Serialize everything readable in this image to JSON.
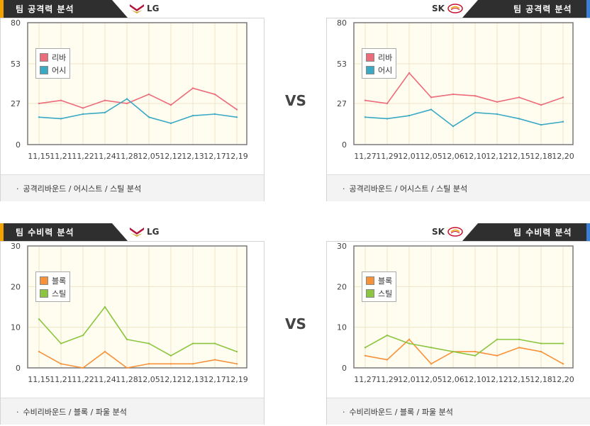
{
  "vs_label": "VS",
  "colors": {
    "tab_dark": "#2f2f2f",
    "tab_accent_orange": "#f2a300",
    "tab_accent_blue": "#3a7fd5",
    "plot_bg": "#fffcf0",
    "grid": "#eee5c8",
    "axis": "#7a7a7a"
  },
  "attack": {
    "title": "팀 공격력 분석",
    "left_team": "LG",
    "right_team": "SK",
    "left_footer": "공격리바운드 / 어시스트 / 스틸 분석",
    "right_footer": "공격리바운드 / 어시스트 / 스틸 분석"
  },
  "defense": {
    "title": "팀 수비력 분석",
    "left_team": "LG",
    "right_team": "SK",
    "left_footer": "수비리바운드 / 블록 / 파울 분석",
    "right_footer": "수비리바운드 / 블록 / 파울 분석"
  },
  "chart_data": [
    {
      "type": "line",
      "team": "LG",
      "categories": [
        "11,15",
        "11,21",
        "11,22",
        "11,24",
        "11,28",
        "12,05",
        "12,12",
        "12,13",
        "12,17",
        "12,19"
      ],
      "yticks": [
        "0",
        "27",
        "53",
        "80"
      ],
      "ylim": [
        0,
        80
      ],
      "legend": "top-left",
      "grid": true,
      "series": [
        {
          "name": "리바",
          "color": "#ec6c7b",
          "values": [
            27,
            29,
            24,
            29,
            27,
            33,
            26,
            37,
            33,
            23
          ]
        },
        {
          "name": "어시",
          "color": "#3aa9c4",
          "values": [
            18,
            17,
            20,
            21,
            30,
            18,
            14,
            19,
            20,
            18
          ]
        }
      ]
    },
    {
      "type": "line",
      "team": "SK",
      "categories": [
        "11,27",
        "11,29",
        "12,01",
        "12,05",
        "12,06",
        "12,10",
        "12,12",
        "12,15",
        "12,18",
        "12,20"
      ],
      "yticks": [
        "0",
        "27",
        "53",
        "80"
      ],
      "ylim": [
        0,
        80
      ],
      "legend": "top-left",
      "grid": true,
      "series": [
        {
          "name": "리바",
          "color": "#ec6c7b",
          "values": [
            29,
            27,
            47,
            31,
            33,
            32,
            28,
            31,
            26,
            31
          ]
        },
        {
          "name": "어시",
          "color": "#3aa9c4",
          "values": [
            18,
            17,
            19,
            23,
            12,
            21,
            20,
            17,
            13,
            15
          ]
        }
      ]
    },
    {
      "type": "line",
      "team": "LG",
      "categories": [
        "11,15",
        "11,21",
        "11,22",
        "11,24",
        "11,28",
        "12,05",
        "12,12",
        "12,13",
        "12,17",
        "12,19"
      ],
      "yticks": [
        "0",
        "10",
        "20",
        "30"
      ],
      "ylim": [
        0,
        30
      ],
      "legend": "top-left",
      "grid": true,
      "series": [
        {
          "name": "블록",
          "color": "#f7923a",
          "values": [
            4,
            1,
            0,
            4,
            0,
            1,
            1,
            1,
            2,
            1
          ]
        },
        {
          "name": "스틸",
          "color": "#8cc63f",
          "values": [
            12,
            6,
            8,
            15,
            7,
            6,
            3,
            6,
            6,
            4
          ]
        }
      ]
    },
    {
      "type": "line",
      "team": "SK",
      "categories": [
        "11,27",
        "11,29",
        "12,01",
        "12,05",
        "12,06",
        "12,10",
        "12,12",
        "12,15",
        "12,18",
        "12,20"
      ],
      "yticks": [
        "0",
        "10",
        "20",
        "30"
      ],
      "ylim": [
        0,
        30
      ],
      "legend": "top-left",
      "grid": true,
      "series": [
        {
          "name": "블록",
          "color": "#f7923a",
          "values": [
            3,
            2,
            7,
            1,
            4,
            4,
            3,
            5,
            4,
            1
          ]
        },
        {
          "name": "스틸",
          "color": "#8cc63f",
          "values": [
            5,
            8,
            6,
            5,
            4,
            3,
            7,
            7,
            6,
            6
          ]
        }
      ]
    }
  ]
}
